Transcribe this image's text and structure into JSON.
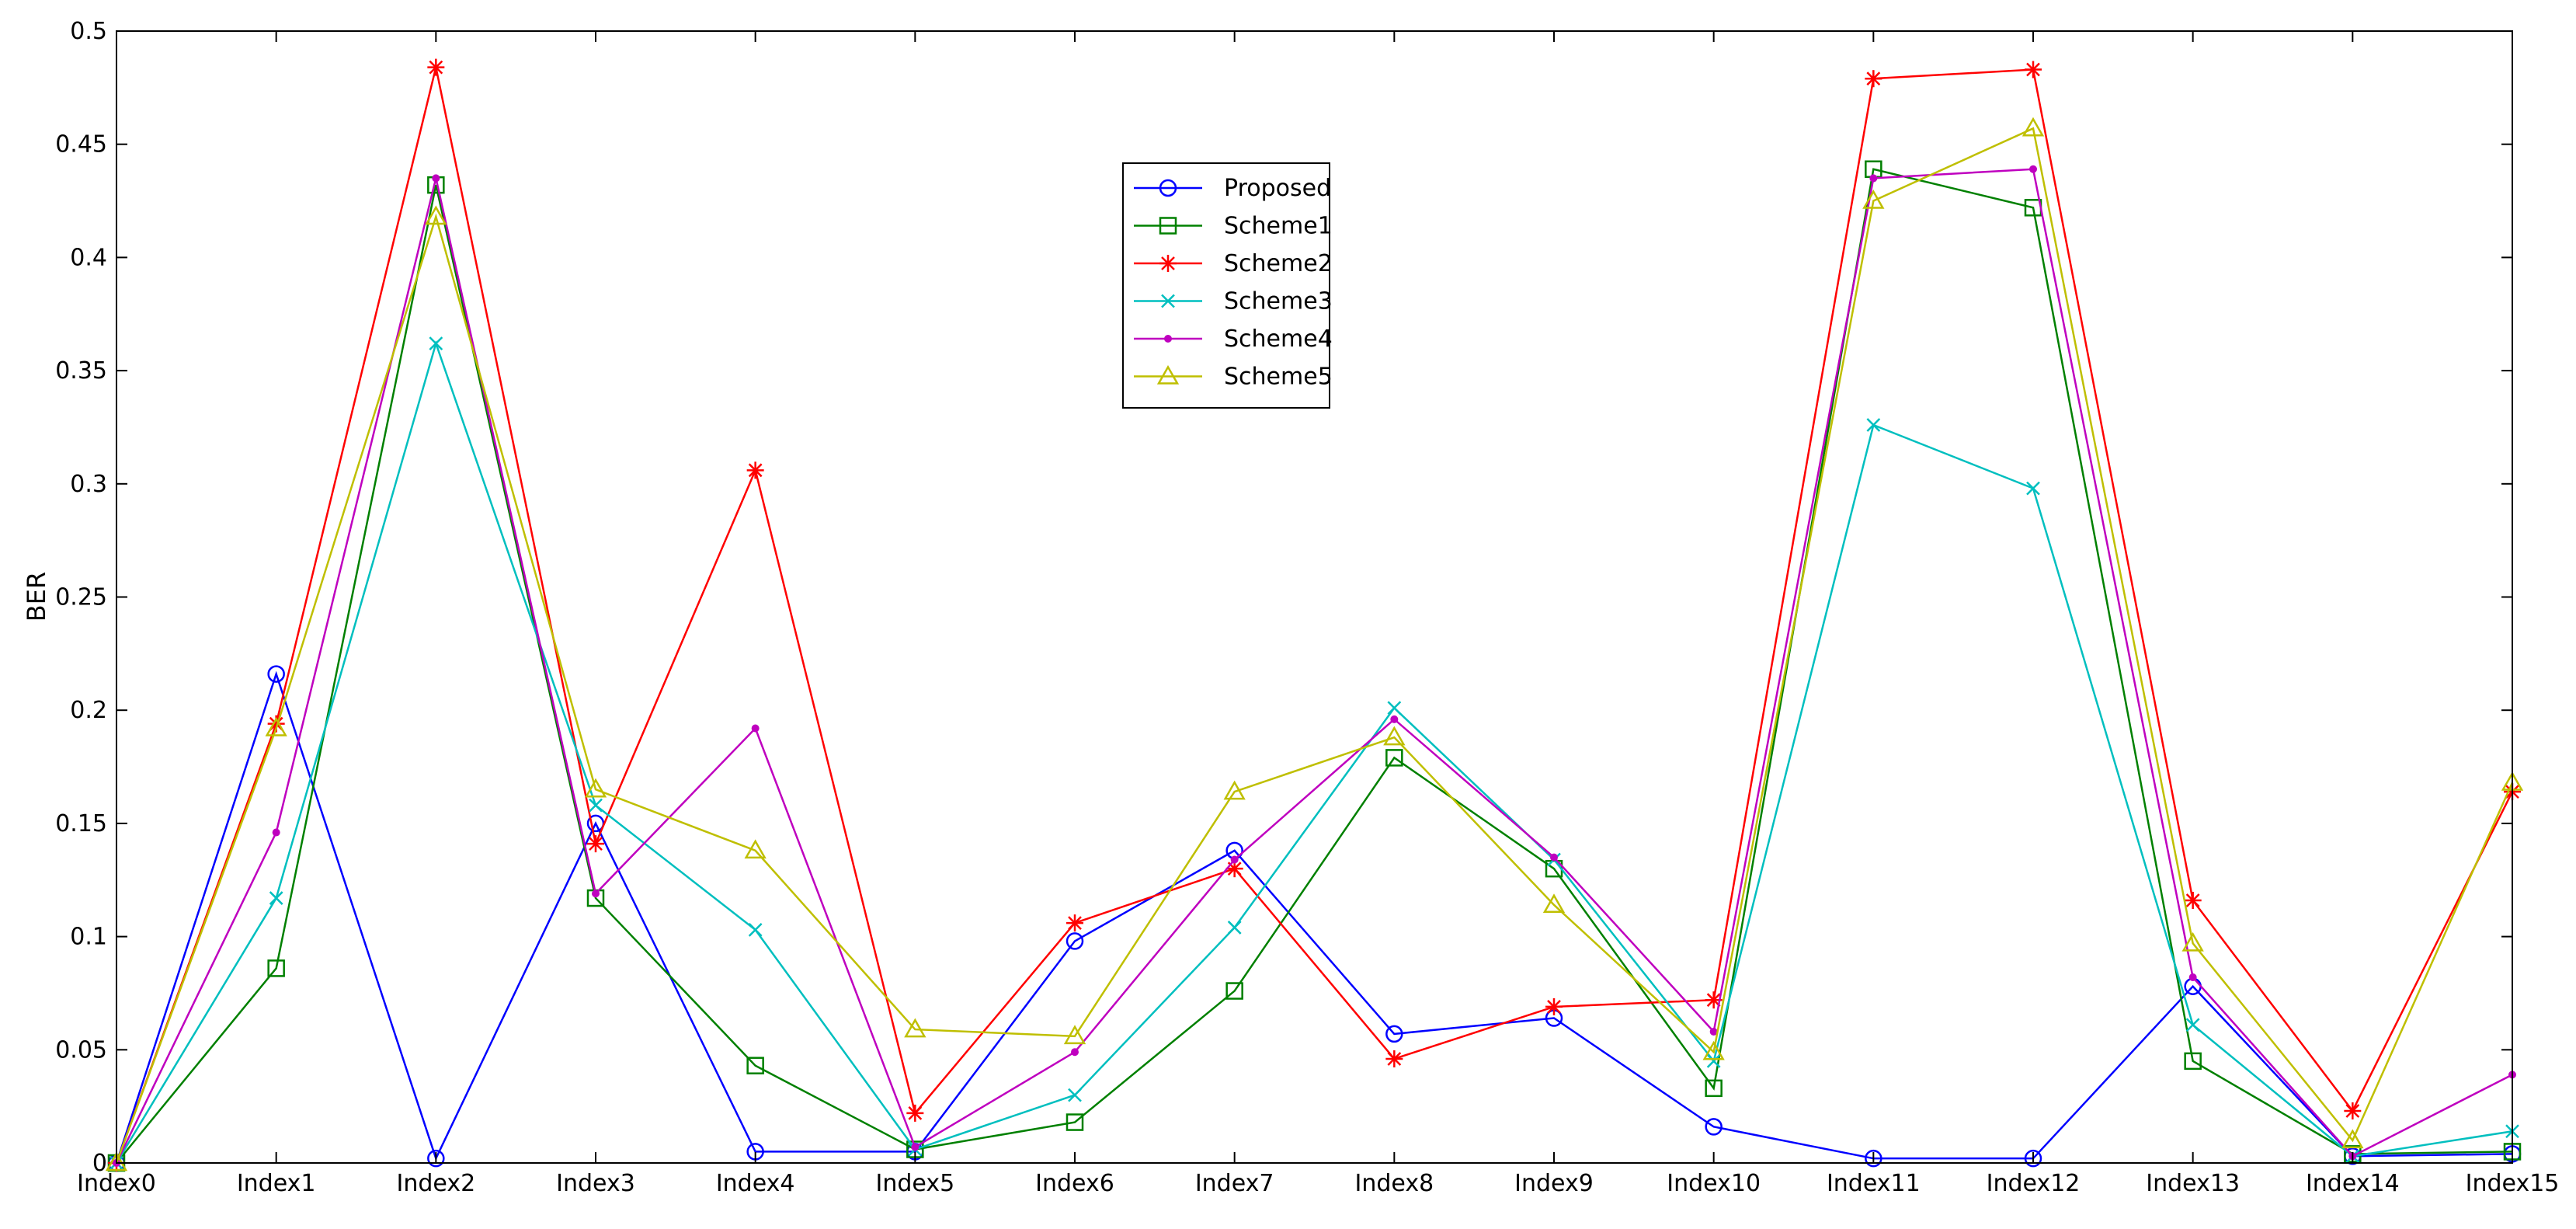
{
  "chart_data": {
    "type": "line",
    "title": "",
    "xlabel": "",
    "ylabel": "BER",
    "categories": [
      "Index0",
      "Index1",
      "Index2",
      "Index3",
      "Index4",
      "Index5",
      "Index6",
      "Index7",
      "Index8",
      "Index9",
      "Index10",
      "Index11",
      "Index12",
      "Index13",
      "Index14",
      "Index15"
    ],
    "ylim": [
      0,
      0.5
    ],
    "yticks": [
      0,
      0.05,
      0.1,
      0.15,
      0.2,
      0.25,
      0.3,
      0.35,
      0.4,
      0.45,
      0.5
    ],
    "ytick_labels": [
      "0",
      "0.05",
      "0.1",
      "0.15",
      "0.2",
      "0.25",
      "0.3",
      "0.35",
      "0.4",
      "0.45",
      "0.5"
    ],
    "grid": false,
    "legend_position": "upper-center",
    "series": [
      {
        "name": "Proposed",
        "color": "#0000ff",
        "marker": "circle",
        "values": [
          0,
          0.216,
          0.002,
          0.15,
          0.005,
          0.005,
          0.098,
          0.138,
          0.057,
          0.064,
          0.016,
          0.002,
          0.002,
          0.078,
          0.003,
          0.004
        ]
      },
      {
        "name": "Scheme1",
        "color": "#008000",
        "marker": "square",
        "values": [
          0,
          0.086,
          0.432,
          0.117,
          0.043,
          0.006,
          0.018,
          0.076,
          0.179,
          0.13,
          0.033,
          0.439,
          0.422,
          0.045,
          0.004,
          0.005
        ]
      },
      {
        "name": "Scheme2",
        "color": "#ff0000",
        "marker": "asterisk",
        "values": [
          0,
          0.194,
          0.484,
          0.141,
          0.306,
          0.022,
          0.106,
          0.13,
          0.046,
          0.069,
          0.072,
          0.479,
          0.483,
          0.116,
          0.023,
          0.164
        ]
      },
      {
        "name": "Scheme3",
        "color": "#00bfbf",
        "marker": "x",
        "values": [
          0,
          0.117,
          0.362,
          0.158,
          0.103,
          0.006,
          0.03,
          0.104,
          0.201,
          0.134,
          0.045,
          0.326,
          0.298,
          0.061,
          0.003,
          0.014
        ]
      },
      {
        "name": "Scheme4",
        "color": "#bf00bf",
        "marker": "dot",
        "values": [
          0,
          0.146,
          0.435,
          0.119,
          0.192,
          0.007,
          0.049,
          0.134,
          0.196,
          0.135,
          0.058,
          0.435,
          0.439,
          0.082,
          0.003,
          0.039
        ]
      },
      {
        "name": "Scheme5",
        "color": "#bfbf00",
        "marker": "triangle",
        "values": [
          0,
          0.192,
          0.418,
          0.165,
          0.138,
          0.059,
          0.056,
          0.164,
          0.188,
          0.114,
          0.049,
          0.425,
          0.457,
          0.097,
          0.01,
          0.168
        ]
      }
    ]
  }
}
